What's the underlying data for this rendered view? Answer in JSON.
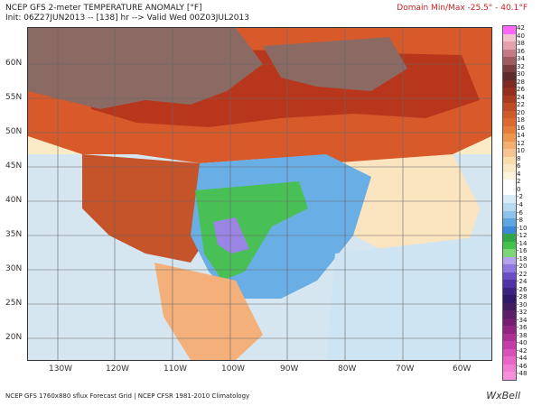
{
  "header": {
    "title": "NCEP GFS 2-meter TEMPERATURE ANOMALY [°F]",
    "init": "Init: 06Z27JUN2013 -- [138] hr --> Valid Wed 00Z03JUL2013",
    "minmax": "Domain Min/Max -25.5° - 40.1°F"
  },
  "map": {
    "lat_labels": [
      "60N",
      "55N",
      "50N",
      "45N",
      "40N",
      "35N",
      "30N",
      "25N",
      "20N"
    ],
    "lon_labels": [
      "130W",
      "120W",
      "110W",
      "100W",
      "90W",
      "80W",
      "70W",
      "60W"
    ]
  },
  "colorbar": {
    "labels": [
      "42",
      "38",
      "34",
      "30",
      "26",
      "22",
      "18",
      "14",
      "10",
      "6",
      "2",
      "-2",
      "-6",
      "-10",
      "-14",
      "-18",
      "-22",
      "-26",
      "-30",
      "-34",
      "-38",
      "-42",
      "-46"
    ],
    "all_labels": [
      "42",
      "40",
      "38",
      "36",
      "34",
      "32",
      "30",
      "28",
      "26",
      "24",
      "22",
      "20",
      "18",
      "16",
      "14",
      "12",
      "10",
      "8",
      "6",
      "4",
      "2",
      "0",
      "-2",
      "-4",
      "-6",
      "-8",
      "-10",
      "-12",
      "-14",
      "-16",
      "-18",
      "-20",
      "-22",
      "-24",
      "-26",
      "-28",
      "-30",
      "-32",
      "-34",
      "-36",
      "-38",
      "-40",
      "-42",
      "-44",
      "-46",
      "-48"
    ],
    "colors": [
      "#ff66ff",
      "#f2c2cf",
      "#e4a0ad",
      "#c47b86",
      "#a05a61",
      "#7a3c3c",
      "#5e2a2a",
      "#7e2a20",
      "#952f1d",
      "#a83a20",
      "#bf4a24",
      "#cf5c28",
      "#dc6a2e",
      "#e57d3a",
      "#ee9650",
      "#f3ad6d",
      "#f6c48e",
      "#f8dcaa",
      "#fbe9c4",
      "#fdf4dc",
      "#ffffff",
      "#ffffff",
      "#d8ecf7",
      "#b6dbf0",
      "#8cc3ea",
      "#5ea6e2",
      "#3c88d8",
      "#33a64a",
      "#44c24c",
      "#7cd676",
      "#b4a2ef",
      "#8e78df",
      "#6a4ec6",
      "#4e34a4",
      "#3c2382",
      "#2e1868",
      "#421c60",
      "#5a1e6a",
      "#761e72",
      "#922484",
      "#ad3095",
      "#c53ba8",
      "#d850b8",
      "#e866c8",
      "#f27ed4",
      "#f88fdc"
    ]
  },
  "footer": "NCEP GFS 1760x880 sflux Forecast Grid | NCEP CFSR 1981-2010 Climatology",
  "brand": "WxBell"
}
